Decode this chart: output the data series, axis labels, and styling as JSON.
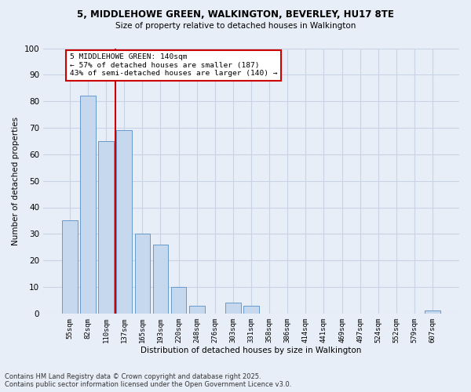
{
  "title_line1": "5, MIDDLEHOWE GREEN, WALKINGTON, BEVERLEY, HU17 8TE",
  "title_line2": "Size of property relative to detached houses in Walkington",
  "xlabel": "Distribution of detached houses by size in Walkington",
  "ylabel": "Number of detached properties",
  "categories": [
    "55sqm",
    "82sqm",
    "110sqm",
    "137sqm",
    "165sqm",
    "193sqm",
    "220sqm",
    "248sqm",
    "276sqm",
    "303sqm",
    "331sqm",
    "358sqm",
    "386sqm",
    "414sqm",
    "441sqm",
    "469sqm",
    "497sqm",
    "524sqm",
    "552sqm",
    "579sqm",
    "607sqm"
  ],
  "values": [
    35,
    82,
    65,
    69,
    30,
    26,
    10,
    3,
    0,
    4,
    3,
    0,
    0,
    0,
    0,
    0,
    0,
    0,
    0,
    0,
    1
  ],
  "bar_color": "#c5d8ed",
  "bar_edge_color": "#6699cc",
  "grid_color": "#c8d4e4",
  "background_color": "#e8eef8",
  "redline_color": "#cc0000",
  "redline_x": 2.5,
  "annotation_text": "5 MIDDLEHOWE GREEN: 140sqm\n← 57% of detached houses are smaller (187)\n43% of semi-detached houses are larger (140) →",
  "annotation_box_color": "#ffffff",
  "annotation_box_edge_color": "#cc0000",
  "ylim": [
    0,
    100
  ],
  "yticks": [
    0,
    10,
    20,
    30,
    40,
    50,
    60,
    70,
    80,
    90,
    100
  ],
  "footnote": "Contains HM Land Registry data © Crown copyright and database right 2025.\nContains public sector information licensed under the Open Government Licence v3.0."
}
